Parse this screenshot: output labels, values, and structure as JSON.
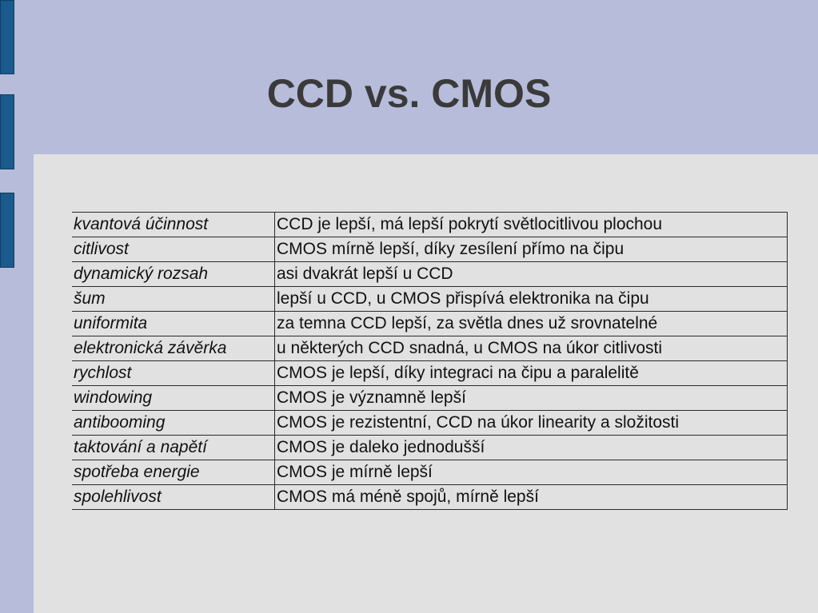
{
  "slide": {
    "title": "CCD vs. CMOS",
    "rows": [
      {
        "property": "kvantová účinnost",
        "comparison": "CCD je lepší, má lepší pokrytí světlocitlivou plochou"
      },
      {
        "property": "citlivost",
        "comparison": "CMOS mírně lepší, díky zesílení přímo na čipu"
      },
      {
        "property": "dynamický rozsah",
        "comparison": "asi dvakrát lepší u CCD"
      },
      {
        "property": "šum",
        "comparison": "lepší u CCD, u CMOS přispívá elektronika na čipu"
      },
      {
        "property": "uniformita",
        "comparison": "za temna CCD lepší, za světla dnes už srovnatelné"
      },
      {
        "property": "elektronická závěrka",
        "comparison": "u některých CCD snadná, u CMOS na úkor citlivosti"
      },
      {
        "property": "rychlost",
        "comparison": "CMOS je lepší, díky integraci na čipu a paralelitě"
      },
      {
        "property": "windowing",
        "comparison": "CMOS je významně lepší"
      },
      {
        "property": "antibooming",
        "comparison": "CMOS je rezistentní, CCD na úkor linearity a složitosti"
      },
      {
        "property": "taktování a napětí",
        "comparison": "CMOS je daleko jednodušší"
      },
      {
        "property": "spotřeba energie",
        "comparison": "CMOS je mírně lepší"
      },
      {
        "property": "spolehlivost",
        "comparison": "CMOS má méně spojů, mírně lepší"
      }
    ]
  },
  "colors": {
    "background": "#b6bcda",
    "panel": "#e1e1e1",
    "accent_bar": "#1a5a8c",
    "title_text": "#3a3a3a"
  }
}
